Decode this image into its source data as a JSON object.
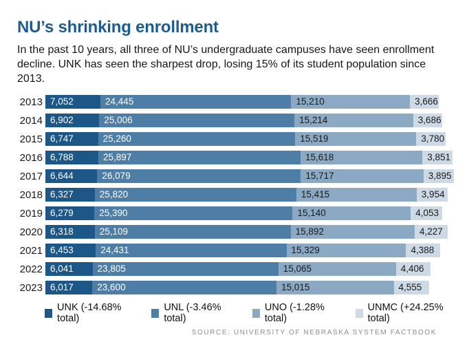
{
  "header": {
    "title": "NU’s shrinking enrollment",
    "subtitle": "In the past 10 years, all three of NU’s undergraduate campuses have seen enrollment decline. UNK has seen the sharpest drop, losing 15% of its student population since 2013."
  },
  "colors": {
    "title_accent": "#1e5c8e",
    "unk": "#1d5788",
    "unl": "#4e7da6",
    "uno": "#8ba9c3",
    "unmc": "#cdd9e5"
  },
  "chart_data": {
    "type": "bar",
    "orientation": "horizontal",
    "stacked": true,
    "grid": false,
    "legend_position": "bottom",
    "title": "NU’s shrinking enrollment",
    "xlabel": "",
    "ylabel": "",
    "xlim": [
      0,
      52335
    ],
    "categories": [
      "2013",
      "2014",
      "2015",
      "2016",
      "2017",
      "2018",
      "2019",
      "2020",
      "2021",
      "2022",
      "2023"
    ],
    "series": [
      {
        "name": "UNK",
        "legend_label": "UNK (-14.68% total)",
        "pct_change": "-14.68%",
        "color": "#1d5788",
        "text_color": "#ffffff",
        "values": [
          7052,
          6902,
          6747,
          6788,
          6644,
          6327,
          6279,
          6318,
          6453,
          6041,
          6017
        ]
      },
      {
        "name": "UNL",
        "legend_label": "UNL (-3.46% total)",
        "pct_change": "-3.46%",
        "color": "#4e7da6",
        "text_color": "#ffffff",
        "values": [
          24445,
          25006,
          25260,
          25897,
          26079,
          25820,
          25390,
          25109,
          24431,
          23805,
          23600
        ]
      },
      {
        "name": "UNO",
        "legend_label": "UNO (-1.28% total)",
        "pct_change": "-1.28%",
        "color": "#8ba9c3",
        "text_color": "#1a1a1a",
        "values": [
          15210,
          15214,
          15519,
          15618,
          15717,
          15415,
          15140,
          15892,
          15329,
          15065,
          15015
        ]
      },
      {
        "name": "UNMC",
        "legend_label": "UNMC (+24.25% total)",
        "pct_change": "+24.25%",
        "color": "#cdd9e5",
        "text_color": "#1a1a1a",
        "values": [
          3666,
          3686,
          3780,
          3851,
          3895,
          3954,
          4053,
          4227,
          4388,
          4406,
          4555
        ]
      }
    ]
  },
  "source": "SOURCE: UNIVERSITY OF NEBRASKA SYSTEM FACTBOOK"
}
